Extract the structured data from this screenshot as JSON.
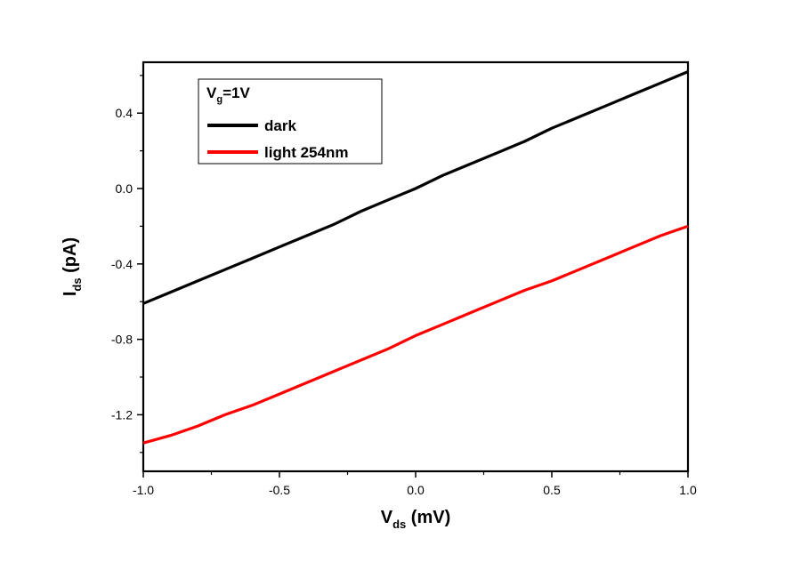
{
  "chart_data": {
    "type": "line",
    "title": "",
    "xlabel": {
      "main": "V",
      "sub": "ds",
      "unit": " (mV)"
    },
    "ylabel": {
      "main": "I",
      "sub": "ds",
      "unit": " (pA)"
    },
    "xlim": [
      -1.0,
      1.0
    ],
    "ylim": [
      -1.5,
      0.67
    ],
    "x_ticks": [
      {
        "value": -1.0,
        "label": "-1.0"
      },
      {
        "value": -0.5,
        "label": "-0.5"
      },
      {
        "value": 0.0,
        "label": "0.0"
      },
      {
        "value": 0.5,
        "label": "0.5"
      },
      {
        "value": 1.0,
        "label": "1.0"
      }
    ],
    "y_ticks": [
      {
        "value": 0.4,
        "label": "0.4"
      },
      {
        "value": 0.0,
        "label": "0.0"
      },
      {
        "value": -0.4,
        "label": "-0.4"
      },
      {
        "value": -0.8,
        "label": "-0.8"
      },
      {
        "value": -1.2,
        "label": "-1.2"
      }
    ],
    "grid": false,
    "legend": {
      "placement": "top-left",
      "header": {
        "main": "V",
        "sub": "g",
        "rest": "=1V"
      }
    },
    "series": [
      {
        "name": "dark",
        "color": "#000000",
        "x": [
          -1.0,
          -0.9,
          -0.8,
          -0.7,
          -0.6,
          -0.5,
          -0.4,
          -0.3,
          -0.2,
          -0.1,
          0.0,
          0.1,
          0.2,
          0.3,
          0.4,
          0.5,
          0.6,
          0.7,
          0.8,
          0.9,
          1.0
        ],
        "y": [
          -0.61,
          -0.55,
          -0.49,
          -0.43,
          -0.37,
          -0.31,
          -0.25,
          -0.19,
          -0.12,
          -0.06,
          0.0,
          0.07,
          0.13,
          0.19,
          0.25,
          0.32,
          0.38,
          0.44,
          0.5,
          0.56,
          0.62
        ]
      },
      {
        "name": "light 254nm",
        "color": "#ff0000",
        "x": [
          -1.0,
          -0.9,
          -0.8,
          -0.7,
          -0.6,
          -0.5,
          -0.4,
          -0.3,
          -0.2,
          -0.1,
          0.0,
          0.1,
          0.2,
          0.3,
          0.4,
          0.5,
          0.6,
          0.7,
          0.8,
          0.9,
          1.0
        ],
        "y": [
          -1.35,
          -1.31,
          -1.26,
          -1.2,
          -1.15,
          -1.09,
          -1.03,
          -0.97,
          -0.91,
          -0.85,
          -0.78,
          -0.72,
          -0.66,
          -0.6,
          -0.54,
          -0.49,
          -0.43,
          -0.37,
          -0.31,
          -0.25,
          -0.2
        ]
      }
    ]
  }
}
